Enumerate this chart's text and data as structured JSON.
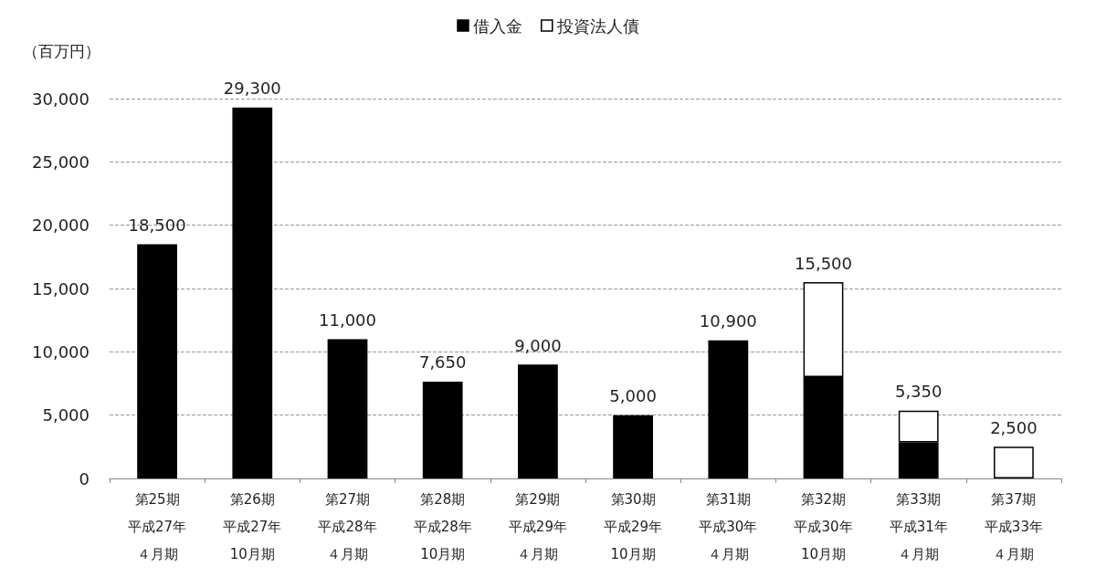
{
  "chart_data": {
    "type": "bar",
    "stacked": true,
    "ylabel": "（百万円）",
    "categories": [
      "第25期平成27年４月期",
      "第26期平成27年10月期",
      "第27期平成28年４月期",
      "第28期平成28年10月期",
      "第29期平成29年４月期",
      "第30期平成29年10月期",
      "第31期平成30年４月期",
      "第32期平成30年10月期",
      "第33期平成31年４月期",
      "第37期平成33年４月期"
    ],
    "series": [
      {
        "name": "借入金",
        "color": "#000000",
        "values": [
          18500,
          29300,
          11000,
          7650,
          9000,
          5000,
          10900,
          8000,
          2850,
          null
        ]
      },
      {
        "name": "投資法人債",
        "color": "#ffffff",
        "values": [
          null,
          null,
          null,
          null,
          null,
          null,
          null,
          7500,
          2500,
          2500
        ]
      }
    ],
    "totals": [
      "18,500",
      "29,300",
      "11,000",
      "7,650",
      "9,000",
      "5,000",
      "10,900",
      "15,500",
      "5,350",
      "2,500"
    ],
    "ylim": [
      0,
      30000
    ],
    "yticks": [
      0,
      {
        "value": 5000,
        "label": "5,000"
      },
      {
        "value": 10000,
        "label": "10,000"
      },
      {
        "value": 15000,
        "label": "15,000"
      },
      {
        "value": 20000,
        "label": "20,000"
      },
      {
        "value": 25000,
        "label": "25,000"
      },
      {
        "value": 30000,
        "label": "30,000"
      }
    ],
    "grid": "y",
    "line_style": "dashed",
    "legend": "top"
  }
}
